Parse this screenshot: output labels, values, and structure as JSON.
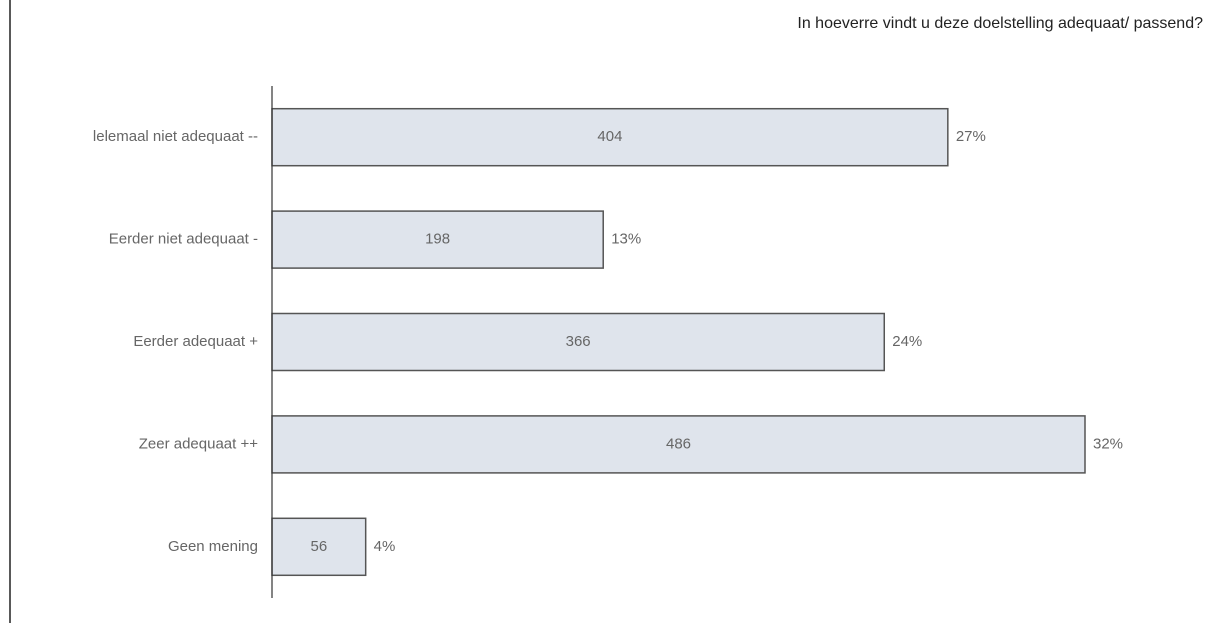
{
  "chart_data": {
    "type": "hbar",
    "title": "In hoeverre vindt u deze doelstelling adequaat/ passend?",
    "categories": [
      "lelemaal niet adequaat --",
      "Eerder niet adequaat -",
      "Eerder adequaat +",
      "Zeer adequaat ++",
      "Geen mening"
    ],
    "values": [
      404,
      198,
      366,
      486,
      56
    ],
    "percent_labels": [
      "27%",
      "13%",
      "24%",
      "32%",
      "4%"
    ],
    "color": "#dfe4ec"
  }
}
